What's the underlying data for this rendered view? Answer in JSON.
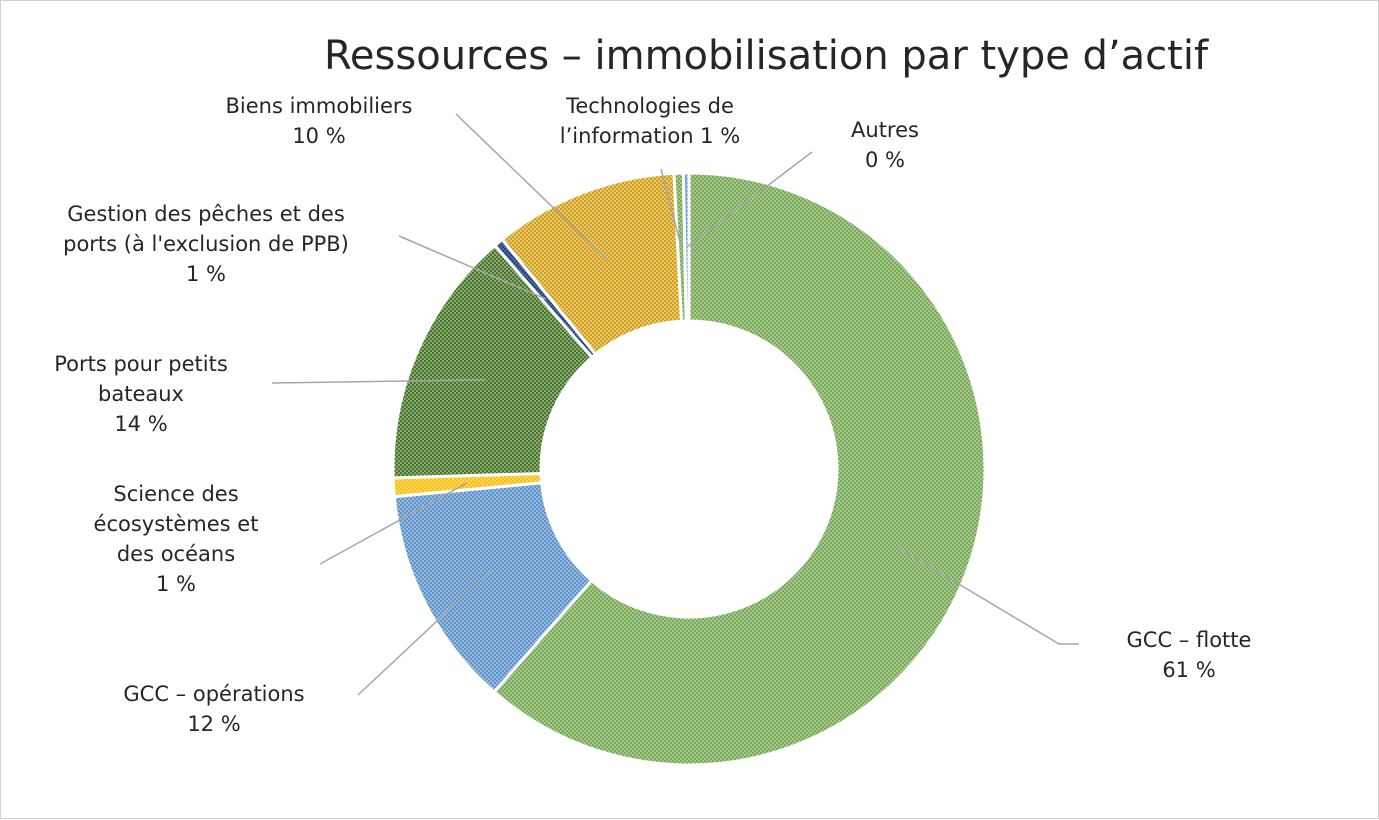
{
  "chart_data": {
    "type": "pie",
    "donut": true,
    "title": "Ressources – immobilisation par type d’actif",
    "legend": "none",
    "segments": [
      {
        "name": "GCC – flotte",
        "value": 61,
        "label": [
          "GCC – flotte",
          "61 %"
        ],
        "color": "#a9d18e",
        "hatch": "#6f9a52"
      },
      {
        "name": "GCC – opérations",
        "value": 12,
        "label": [
          "GCC – opérations",
          "12 %"
        ],
        "color": "#9dc3e6",
        "hatch": "#4f81bd"
      },
      {
        "name": "Science des écosystèmes et des océans",
        "value": 1,
        "label": [
          "Science des",
          "écosystèmes et",
          "des océans",
          "1 %"
        ],
        "color": "#ffd966",
        "hatch": "#f5b800"
      },
      {
        "name": "Ports pour petits bateaux",
        "value": 14,
        "label": [
          "Ports pour petits",
          "bateaux",
          "14 %"
        ],
        "color": "#8fbc73",
        "hatch": "#375623"
      },
      {
        "name": "Gestion des pêches et des ports (à l'exclusion de PPB)",
        "value": 0.5,
        "label": [
          "Gestion des pêches et des",
          "ports (à l'exclusion de PPB)",
          "1 %"
        ],
        "color": "#4f6fb0",
        "hatch": "#203864"
      },
      {
        "name": "Biens immobiliers",
        "value": 10,
        "label": [
          "Biens immobiliers",
          "10 %"
        ],
        "color": "#f4cf7a",
        "hatch": "#bf9000"
      },
      {
        "name": "Technologies de l’information",
        "value": 0.5,
        "label": [
          "Technologies de",
          "l’information 1 %"
        ],
        "color": "#a9d18e",
        "hatch": "#6f9a52"
      },
      {
        "name": "Autres",
        "value": 0.3,
        "label": [
          "Autres",
          "0 %"
        ],
        "color": "#9dc3e6",
        "hatch": "#4f81bd"
      }
    ]
  }
}
